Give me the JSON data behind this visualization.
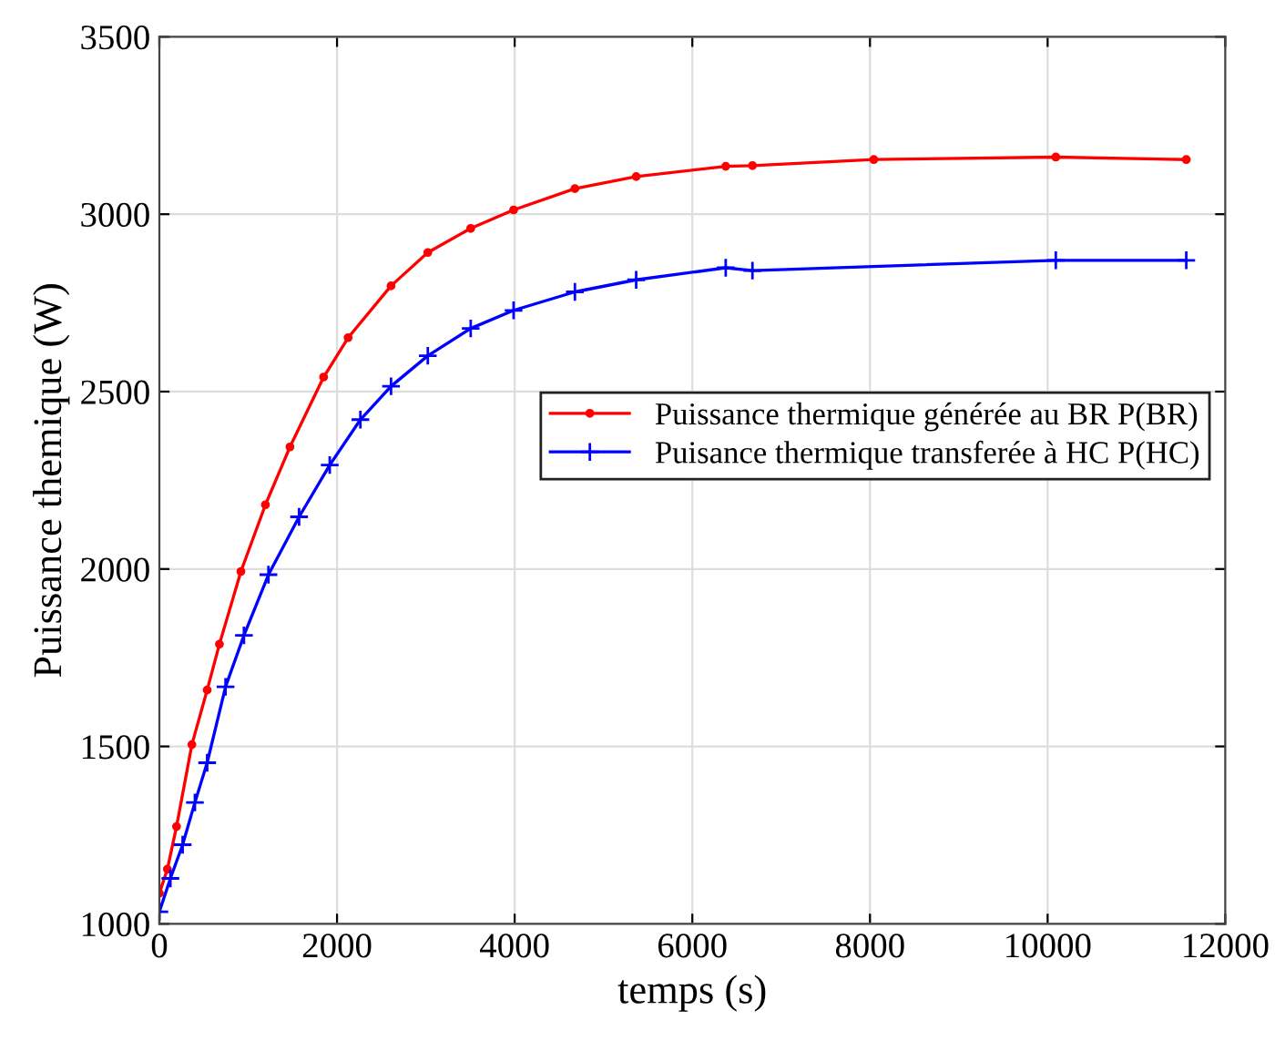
{
  "chart_data": {
    "type": "line",
    "xlabel": "temps (s)",
    "ylabel": "Puissance themique (W)",
    "xlim": [
      0,
      12000
    ],
    "xticks": [
      0,
      2000,
      4000,
      6000,
      8000,
      10000,
      12000
    ],
    "ylim": [
      1000,
      3500
    ],
    "yticks": [
      1000,
      1500,
      2000,
      2500,
      3000,
      3500
    ],
    "grid": true,
    "legend": "right",
    "series": [
      {
        "name": "Puissance thermique générée au BR P(BR)",
        "color": "#ff0000",
        "marker": "circle",
        "x": [
          0,
          90,
          193,
          366,
          538,
          676,
          918,
          1194,
          1470,
          1849,
          2125,
          2608,
          3022,
          3505,
          3988,
          4678,
          5368,
          6376,
          6677,
          8043,
          10092,
          11561
        ],
        "values": [
          1086,
          1154,
          1274,
          1505,
          1659,
          1788,
          1993,
          2181,
          2344,
          2541,
          2652,
          2798,
          2892,
          2960,
          3012,
          3072,
          3106,
          3135,
          3137,
          3154,
          3161,
          3154
        ]
      },
      {
        "name": "Puisance thermique transferée à HC P(HC)",
        "color": "#0000ff",
        "marker": "cross",
        "x": [
          0,
          124,
          262,
          400,
          538,
          745,
          952,
          1228,
          1573,
          1918,
          2263,
          2608,
          3022,
          3505,
          3988,
          4678,
          5368,
          6376,
          6677,
          10092,
          11561
        ],
        "values": [
          1034,
          1128,
          1223,
          1342,
          1454,
          1668,
          1813,
          1984,
          2147,
          2293,
          2421,
          2515,
          2601,
          2678,
          2729,
          2781,
          2815,
          2849,
          2841,
          2870,
          2870
        ]
      }
    ]
  }
}
